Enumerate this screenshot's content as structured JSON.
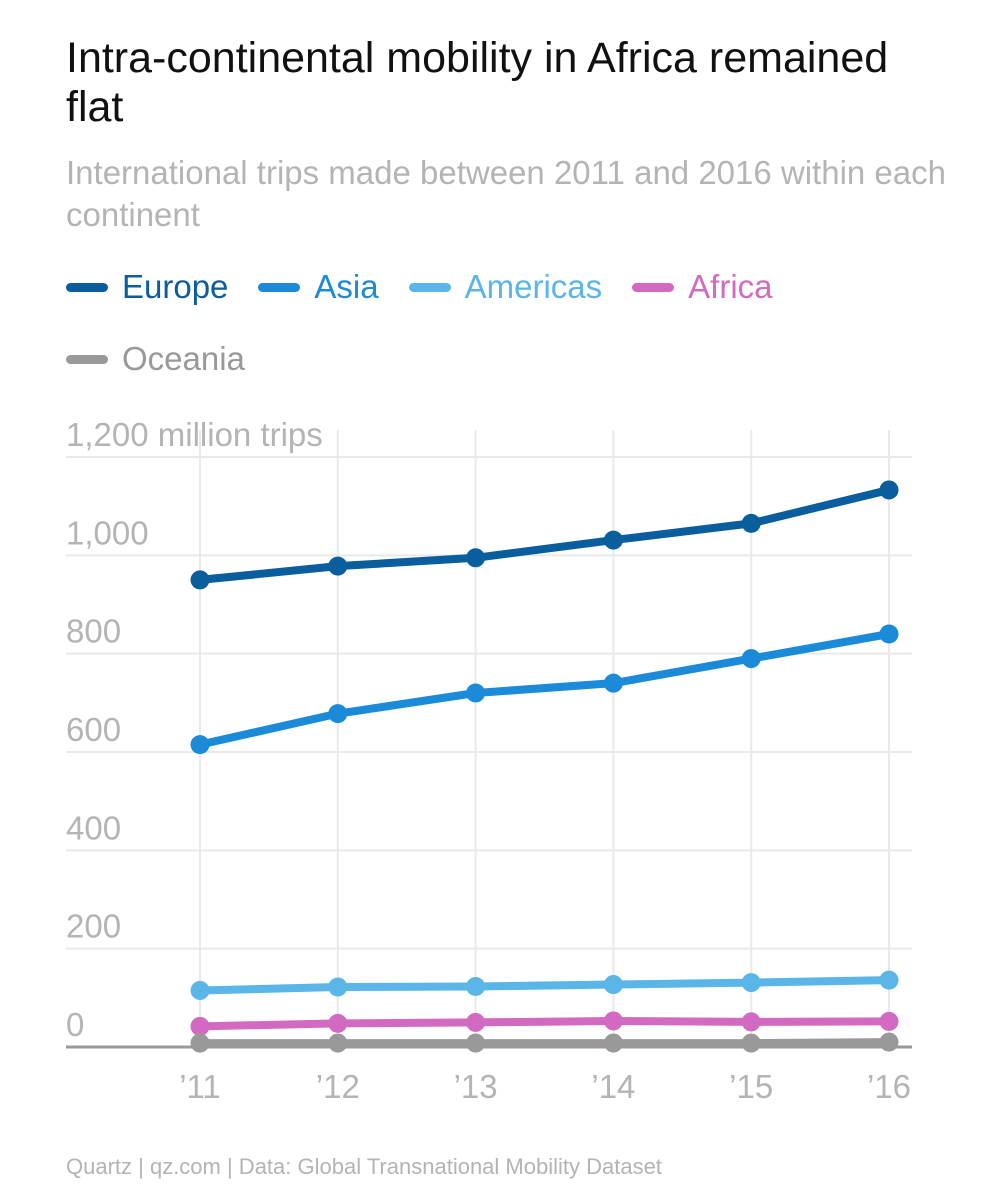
{
  "title": "Intra-continental mobility in Africa remained flat",
  "subtitle": "International trips made between 2011 and 2016 within each continent",
  "source": "Quartz | qz.com | Data: Global Transnational Mobility Dataset",
  "chart_data": {
    "type": "line",
    "x": [
      "’11",
      "’12",
      "’13",
      "’14",
      "’15",
      "’16"
    ],
    "ylim": [
      0,
      1200
    ],
    "yticks": [
      {
        "value": 0,
        "label": "0"
      },
      {
        "value": 200,
        "label": "200"
      },
      {
        "value": 400,
        "label": "400"
      },
      {
        "value": 600,
        "label": "600"
      },
      {
        "value": 800,
        "label": "800"
      },
      {
        "value": 1000,
        "label": "1,000"
      },
      {
        "value": 1200,
        "label": "1,200 million trips"
      }
    ],
    "grid": true,
    "legend_position": "top",
    "series": [
      {
        "name": "Europe",
        "color": "#0a5e9e",
        "values": [
          950,
          978,
          995,
          1031,
          1065,
          1133
        ]
      },
      {
        "name": "Asia",
        "color": "#1a8ad9",
        "values": [
          615,
          678,
          720,
          740,
          790,
          840
        ]
      },
      {
        "name": "Americas",
        "color": "#5ab5e8",
        "values": [
          115,
          122,
          123,
          127,
          131,
          136
        ]
      },
      {
        "name": "Africa",
        "color": "#d26ac2",
        "values": [
          42,
          48,
          50,
          53,
          51,
          52
        ]
      },
      {
        "name": "Oceania",
        "color": "#999999",
        "values": [
          8,
          8,
          8,
          8,
          8,
          10
        ]
      }
    ]
  }
}
